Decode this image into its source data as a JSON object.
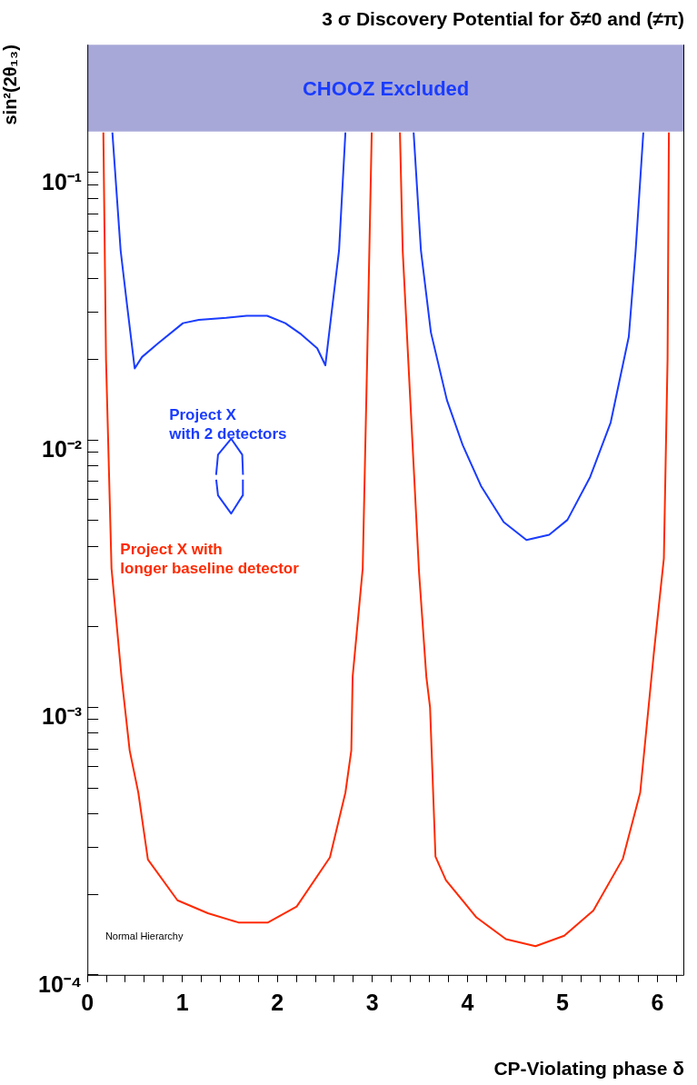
{
  "chart_data": {
    "type": "line",
    "title": "3 σ Discovery Potential for δ≠0 and (≠π)",
    "xlabel": "CP-Violating phase δ",
    "ylabel": "sin²(2θ₁₃)",
    "log": "y",
    "grid": false,
    "legend": false,
    "marker": "none",
    "line_style": "solid",
    "xlim": [
      0,
      6.283
    ],
    "xticks": [
      0,
      {
        "value": 0.2,
        "label": null
      },
      {
        "value": 0.4,
        "label": null
      },
      {
        "value": 0.6,
        "label": null
      },
      {
        "value": 0.8,
        "label": null
      },
      1,
      {
        "value": 1.2,
        "label": null
      },
      {
        "value": 1.4,
        "label": null
      },
      {
        "value": 1.6,
        "label": null
      },
      {
        "value": 1.8,
        "label": null
      },
      2,
      {
        "value": 2.2,
        "label": null
      },
      {
        "value": 2.4,
        "label": null
      },
      {
        "value": 2.6,
        "label": null
      },
      {
        "value": 2.8,
        "label": null
      },
      3,
      {
        "value": 3.2,
        "label": null
      },
      {
        "value": 3.4,
        "label": null
      },
      {
        "value": 3.6,
        "label": null
      },
      {
        "value": 3.8,
        "label": null
      },
      4,
      {
        "value": 4.2,
        "label": null
      },
      {
        "value": 4.4,
        "label": null
      },
      {
        "value": 4.6,
        "label": null
      },
      {
        "value": 4.8,
        "label": null
      },
      5,
      {
        "value": 5.2,
        "label": null
      },
      {
        "value": 5.4,
        "label": null
      },
      {
        "value": 5.6,
        "label": null
      },
      {
        "value": 5.8,
        "label": null
      },
      6,
      {
        "value": 6.2,
        "label": null
      }
    ],
    "ylim": [
      0.0001,
      0.3
    ],
    "yticks": [
      {
        "value": 0.0001,
        "label": "10⁻⁴"
      },
      {
        "value": 0.0002,
        "label": null
      },
      {
        "value": 0.0003,
        "label": null
      },
      {
        "value": 0.0004,
        "label": null
      },
      {
        "value": 0.0005,
        "label": null
      },
      {
        "value": 0.0006,
        "label": null
      },
      {
        "value": 0.0007,
        "label": null
      },
      {
        "value": 0.0008,
        "label": null
      },
      {
        "value": 0.0009,
        "label": null
      },
      {
        "value": 0.001,
        "label": "10⁻³"
      },
      {
        "value": 0.002,
        "label": null
      },
      {
        "value": 0.003,
        "label": null
      },
      {
        "value": 0.004,
        "label": null
      },
      {
        "value": 0.005,
        "label": null
      },
      {
        "value": 0.006,
        "label": null
      },
      {
        "value": 0.007,
        "label": null
      },
      {
        "value": 0.008,
        "label": null
      },
      {
        "value": 0.009,
        "label": null
      },
      {
        "value": 0.01,
        "label": "10⁻²"
      },
      {
        "value": 0.02,
        "label": null
      },
      {
        "value": 0.03,
        "label": null
      },
      {
        "value": 0.04,
        "label": null
      },
      {
        "value": 0.05,
        "label": null
      },
      {
        "value": 0.06,
        "label": null
      },
      {
        "value": 0.07,
        "label": null
      },
      {
        "value": 0.08,
        "label": null
      },
      {
        "value": 0.09,
        "label": null
      },
      {
        "value": 0.1,
        "label": "10⁻¹"
      }
    ],
    "bands": [
      {
        "axis": "y",
        "from": 0.142,
        "to": 0.3,
        "label": "CHOOZ Excluded",
        "color": "#a8a8d8"
      }
    ],
    "annotations": [
      "Project X\nwith 2 detectors",
      "Project X with\nlonger baseline detector",
      "Normal Hierarchy"
    ],
    "series": [
      {
        "color": "#ff2a00",
        "x": [
          0.168,
          0.196,
          0.254,
          0.359,
          0.445,
          0.536,
          0.637,
          0.948,
          1.269,
          1.59,
          1.901,
          2.203,
          2.553,
          2.716,
          2.778,
          2.792,
          2.898,
          2.945,
          2.993
        ],
        "values": [
          0.141,
          0.02,
          0.0033,
          0.0013,
          0.00069,
          0.00048,
          0.00027,
          0.00019,
          0.00017,
          0.000157,
          0.000157,
          0.00018,
          0.000275,
          0.00048,
          0.00069,
          0.0013,
          0.0033,
          0.02,
          0.141
        ]
      },
      {
        "color": "#ff2a00",
        "x": [
          3.29,
          3.319,
          3.491,
          3.568,
          3.607,
          3.664,
          3.774,
          4.095,
          4.406,
          4.717,
          5.019,
          5.326,
          5.637,
          5.819,
          5.963,
          6.068,
          6.107,
          6.121
        ],
        "values": [
          0.141,
          0.051,
          0.0032,
          0.0013,
          0.001,
          0.000277,
          0.000226,
          0.000164,
          0.000136,
          0.000128,
          0.00014,
          0.000174,
          0.000272,
          0.00048,
          0.0016,
          0.0036,
          0.02,
          0.141
        ]
      },
      {
        "color": "#1a3cff",
        "x": [
          0.263,
          0.35,
          0.417,
          0.498,
          0.575,
          0.742,
          1.006,
          1.173,
          1.461,
          1.676,
          1.892,
          2.083,
          2.251,
          2.419,
          2.505,
          2.563,
          2.649,
          2.716
        ],
        "values": [
          0.141,
          0.051,
          0.032,
          0.0185,
          0.0204,
          0.0229,
          0.0273,
          0.0281,
          0.0286,
          0.0291,
          0.0291,
          0.0273,
          0.0248,
          0.022,
          0.019,
          0.0284,
          0.051,
          0.141
        ]
      },
      {
        "color": "#1a3cff",
        "x": [
          1.355,
          1.375,
          1.513,
          1.63,
          1.638
        ],
        "values": [
          0.0074,
          0.0088,
          0.0101,
          0.0088,
          0.0074
        ]
      },
      {
        "color": "#1a3cff",
        "x": [
          1.356,
          1.375,
          1.513,
          1.635,
          1.637
        ],
        "values": [
          0.0071,
          0.0062,
          0.0053,
          0.0062,
          0.0071
        ]
      },
      {
        "color": "#1a3cff",
        "x": [
          3.434,
          3.511,
          3.616,
          3.784,
          3.951,
          4.143,
          4.382,
          4.622,
          4.861,
          5.053,
          5.292,
          5.508,
          5.699,
          5.771,
          5.852
        ],
        "values": [
          0.141,
          0.051,
          0.0252,
          0.0141,
          0.00955,
          0.00673,
          0.00493,
          0.00422,
          0.00442,
          0.00502,
          0.00726,
          0.0116,
          0.0243,
          0.051,
          0.141
        ]
      }
    ]
  }
}
